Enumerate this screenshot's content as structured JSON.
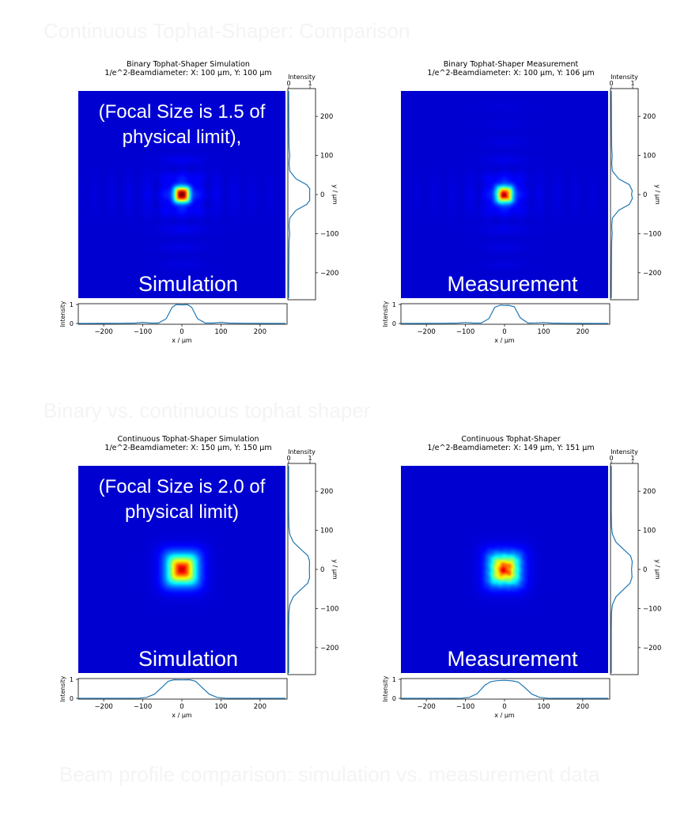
{
  "ghost_text": {
    "top": "Continuous Tophat-Shaper: Comparison",
    "middle": "Binary vs. continuous tophat shaper",
    "bottom": "Beam profile comparison: simulation vs. measurement data"
  },
  "colors": {
    "beam_background": "#00008f",
    "profile_line": "#1f77b4",
    "axis": "#000000",
    "overlay_text": "#ffffff"
  },
  "colormap": "jet",
  "chart_data": [
    {
      "id": "binary-simulation",
      "type": "heatmap",
      "title": "Binary Tophat-Shaper Simulation",
      "subtitle": "1/e^2-Beamdiameter: X: 100 μm, Y: 100 μm",
      "overlay_label": "Simulation",
      "note_lines": [
        "(Focal Size is 1.5 of",
        "physical limit),"
      ],
      "beam": {
        "center_x": 0,
        "center_y": 0,
        "half_width": 16,
        "edge_sharpness": 5.5,
        "side_lobe_amplitude": 0.06,
        "side_lobe_period": 45,
        "texture": 0
      },
      "extent_um": [
        -265,
        265
      ],
      "xlabel": "x / μm",
      "ylabel": "y / μm",
      "xticks": [
        -200,
        -100,
        0,
        100,
        200
      ],
      "yticks": [
        200,
        100,
        0,
        -100,
        -200
      ],
      "profile_label": "Intensity",
      "profile_ticks": [
        0,
        1
      ],
      "x_profile": {
        "x": [
          -265,
          -160,
          -120,
          -100,
          -80,
          -60,
          -40,
          -25,
          -15,
          0,
          15,
          25,
          40,
          60,
          80,
          100,
          120,
          160,
          265
        ],
        "y": [
          0,
          0.01,
          0.02,
          0.06,
          0.02,
          0.02,
          0.25,
          0.85,
          0.99,
          0.98,
          0.99,
          0.85,
          0.25,
          0.02,
          0.02,
          0.06,
          0.02,
          0.01,
          0
        ]
      },
      "y_profile": {
        "y": [
          -265,
          -160,
          -120,
          -100,
          -80,
          -60,
          -40,
          -25,
          -15,
          0,
          15,
          25,
          40,
          60,
          80,
          100,
          120,
          160,
          265
        ],
        "x": [
          0,
          0.01,
          0.02,
          0.05,
          0.02,
          0.05,
          0.35,
          0.85,
          0.99,
          0.98,
          0.99,
          0.85,
          0.35,
          0.05,
          0.02,
          0.05,
          0.02,
          0.01,
          0
        ]
      }
    },
    {
      "id": "binary-measurement",
      "type": "heatmap",
      "title": "Binary Tophat-Shaper Measurement",
      "subtitle": "1/e^2-Beamdiameter: X: 100 μm, Y: 106 μm",
      "overlay_label": "Measurement",
      "note_lines": [],
      "beam": {
        "center_x": 0,
        "center_y": 0,
        "half_width": 16,
        "edge_sharpness": 6.5,
        "side_lobe_amplitude": 0.05,
        "side_lobe_period": 45,
        "texture": 0.12
      },
      "extent_um": [
        -265,
        265
      ],
      "xlabel": "x / μm",
      "ylabel": "y / μm",
      "xticks": [
        -200,
        -100,
        0,
        100,
        200
      ],
      "yticks": [
        200,
        100,
        0,
        -100,
        -200
      ],
      "profile_label": "Intensity",
      "profile_ticks": [
        0,
        1
      ],
      "x_profile": {
        "x": [
          -265,
          -160,
          -120,
          -100,
          -80,
          -60,
          -40,
          -25,
          -10,
          0,
          10,
          25,
          40,
          60,
          80,
          100,
          120,
          160,
          265
        ],
        "y": [
          0,
          0.01,
          0.02,
          0.05,
          0.02,
          0.02,
          0.25,
          0.85,
          0.97,
          0.95,
          0.96,
          0.88,
          0.3,
          0.02,
          0.03,
          0.05,
          0.02,
          0.01,
          0
        ]
      },
      "y_profile": {
        "y": [
          -265,
          -160,
          -120,
          -100,
          -80,
          -60,
          -40,
          -25,
          -10,
          0,
          10,
          25,
          40,
          60,
          80,
          100,
          120,
          160,
          265
        ],
        "x": [
          0,
          0.01,
          0.02,
          0.04,
          0.02,
          0.05,
          0.35,
          0.85,
          0.99,
          0.95,
          0.98,
          0.85,
          0.35,
          0.05,
          0.02,
          0.04,
          0.02,
          0.01,
          0
        ]
      }
    },
    {
      "id": "continuous-simulation",
      "type": "heatmap",
      "title": "Continuous Tophat-Shaper Simulation",
      "subtitle": "1/e^2-Beamdiameter: X: 150 μm, Y: 150 μm",
      "overlay_label": "Simulation",
      "note_lines": [
        "(Focal Size is 2.0 of",
        "physical limit)"
      ],
      "beam": {
        "center_x": 0,
        "center_y": 0,
        "half_width": 28,
        "edge_sharpness": 12,
        "side_lobe_amplitude": 0,
        "side_lobe_period": 45,
        "texture": 0
      },
      "extent_um": [
        -265,
        265
      ],
      "xlabel": "x / μm",
      "ylabel": "y / μm",
      "xticks": [
        -200,
        -100,
        0,
        100,
        200
      ],
      "yticks": [
        200,
        100,
        0,
        -100,
        -200
      ],
      "profile_label": "Intensity",
      "profile_ticks": [
        0,
        1
      ],
      "x_profile": {
        "x": [
          -265,
          -150,
          -110,
          -90,
          -70,
          -50,
          -35,
          -20,
          0,
          20,
          35,
          50,
          70,
          90,
          110,
          150,
          265
        ],
        "y": [
          0,
          0,
          0.01,
          0.05,
          0.22,
          0.6,
          0.9,
          0.98,
          0.97,
          0.98,
          0.9,
          0.6,
          0.22,
          0.05,
          0.01,
          0,
          0
        ]
      },
      "y_profile": {
        "y": [
          -265,
          -150,
          -110,
          -90,
          -70,
          -50,
          -35,
          -20,
          0,
          20,
          35,
          50,
          70,
          90,
          110,
          150,
          265
        ],
        "x": [
          0,
          0,
          0.01,
          0.05,
          0.22,
          0.6,
          0.9,
          0.98,
          0.97,
          0.98,
          0.9,
          0.6,
          0.22,
          0.05,
          0.01,
          0,
          0
        ]
      }
    },
    {
      "id": "continuous-measurement",
      "type": "heatmap",
      "title": "Continuous Tophat-Shaper",
      "subtitle": "1/e^2-Beamdiameter: X: 149 μm, Y: 151 μm",
      "overlay_label": "Measurement",
      "note_lines": [],
      "beam": {
        "center_x": 0,
        "center_y": 0,
        "half_width": 28,
        "edge_sharpness": 12,
        "side_lobe_amplitude": 0,
        "side_lobe_period": 45,
        "texture": 0.15
      },
      "extent_um": [
        -265,
        265
      ],
      "xlabel": "x / μm",
      "ylabel": "y / μm",
      "xticks": [
        -200,
        -100,
        0,
        100,
        200
      ],
      "yticks": [
        200,
        100,
        0,
        -100,
        -200
      ],
      "profile_label": "Intensity",
      "profile_ticks": [
        0,
        1
      ],
      "x_profile": {
        "x": [
          -265,
          -150,
          -110,
          -90,
          -70,
          -50,
          -35,
          -20,
          0,
          20,
          35,
          50,
          70,
          90,
          110,
          150,
          265
        ],
        "y": [
          0,
          0,
          0.01,
          0.05,
          0.25,
          0.7,
          0.88,
          0.93,
          0.95,
          0.92,
          0.86,
          0.6,
          0.22,
          0.05,
          0.01,
          0,
          0
        ]
      },
      "y_profile": {
        "y": [
          -265,
          -150,
          -110,
          -90,
          -70,
          -50,
          -35,
          -20,
          0,
          20,
          35,
          50,
          70,
          90,
          110,
          150,
          265
        ],
        "x": [
          0,
          0,
          0.01,
          0.05,
          0.22,
          0.6,
          0.88,
          0.97,
          0.95,
          0.98,
          0.9,
          0.6,
          0.22,
          0.05,
          0.01,
          0,
          0
        ]
      }
    }
  ]
}
